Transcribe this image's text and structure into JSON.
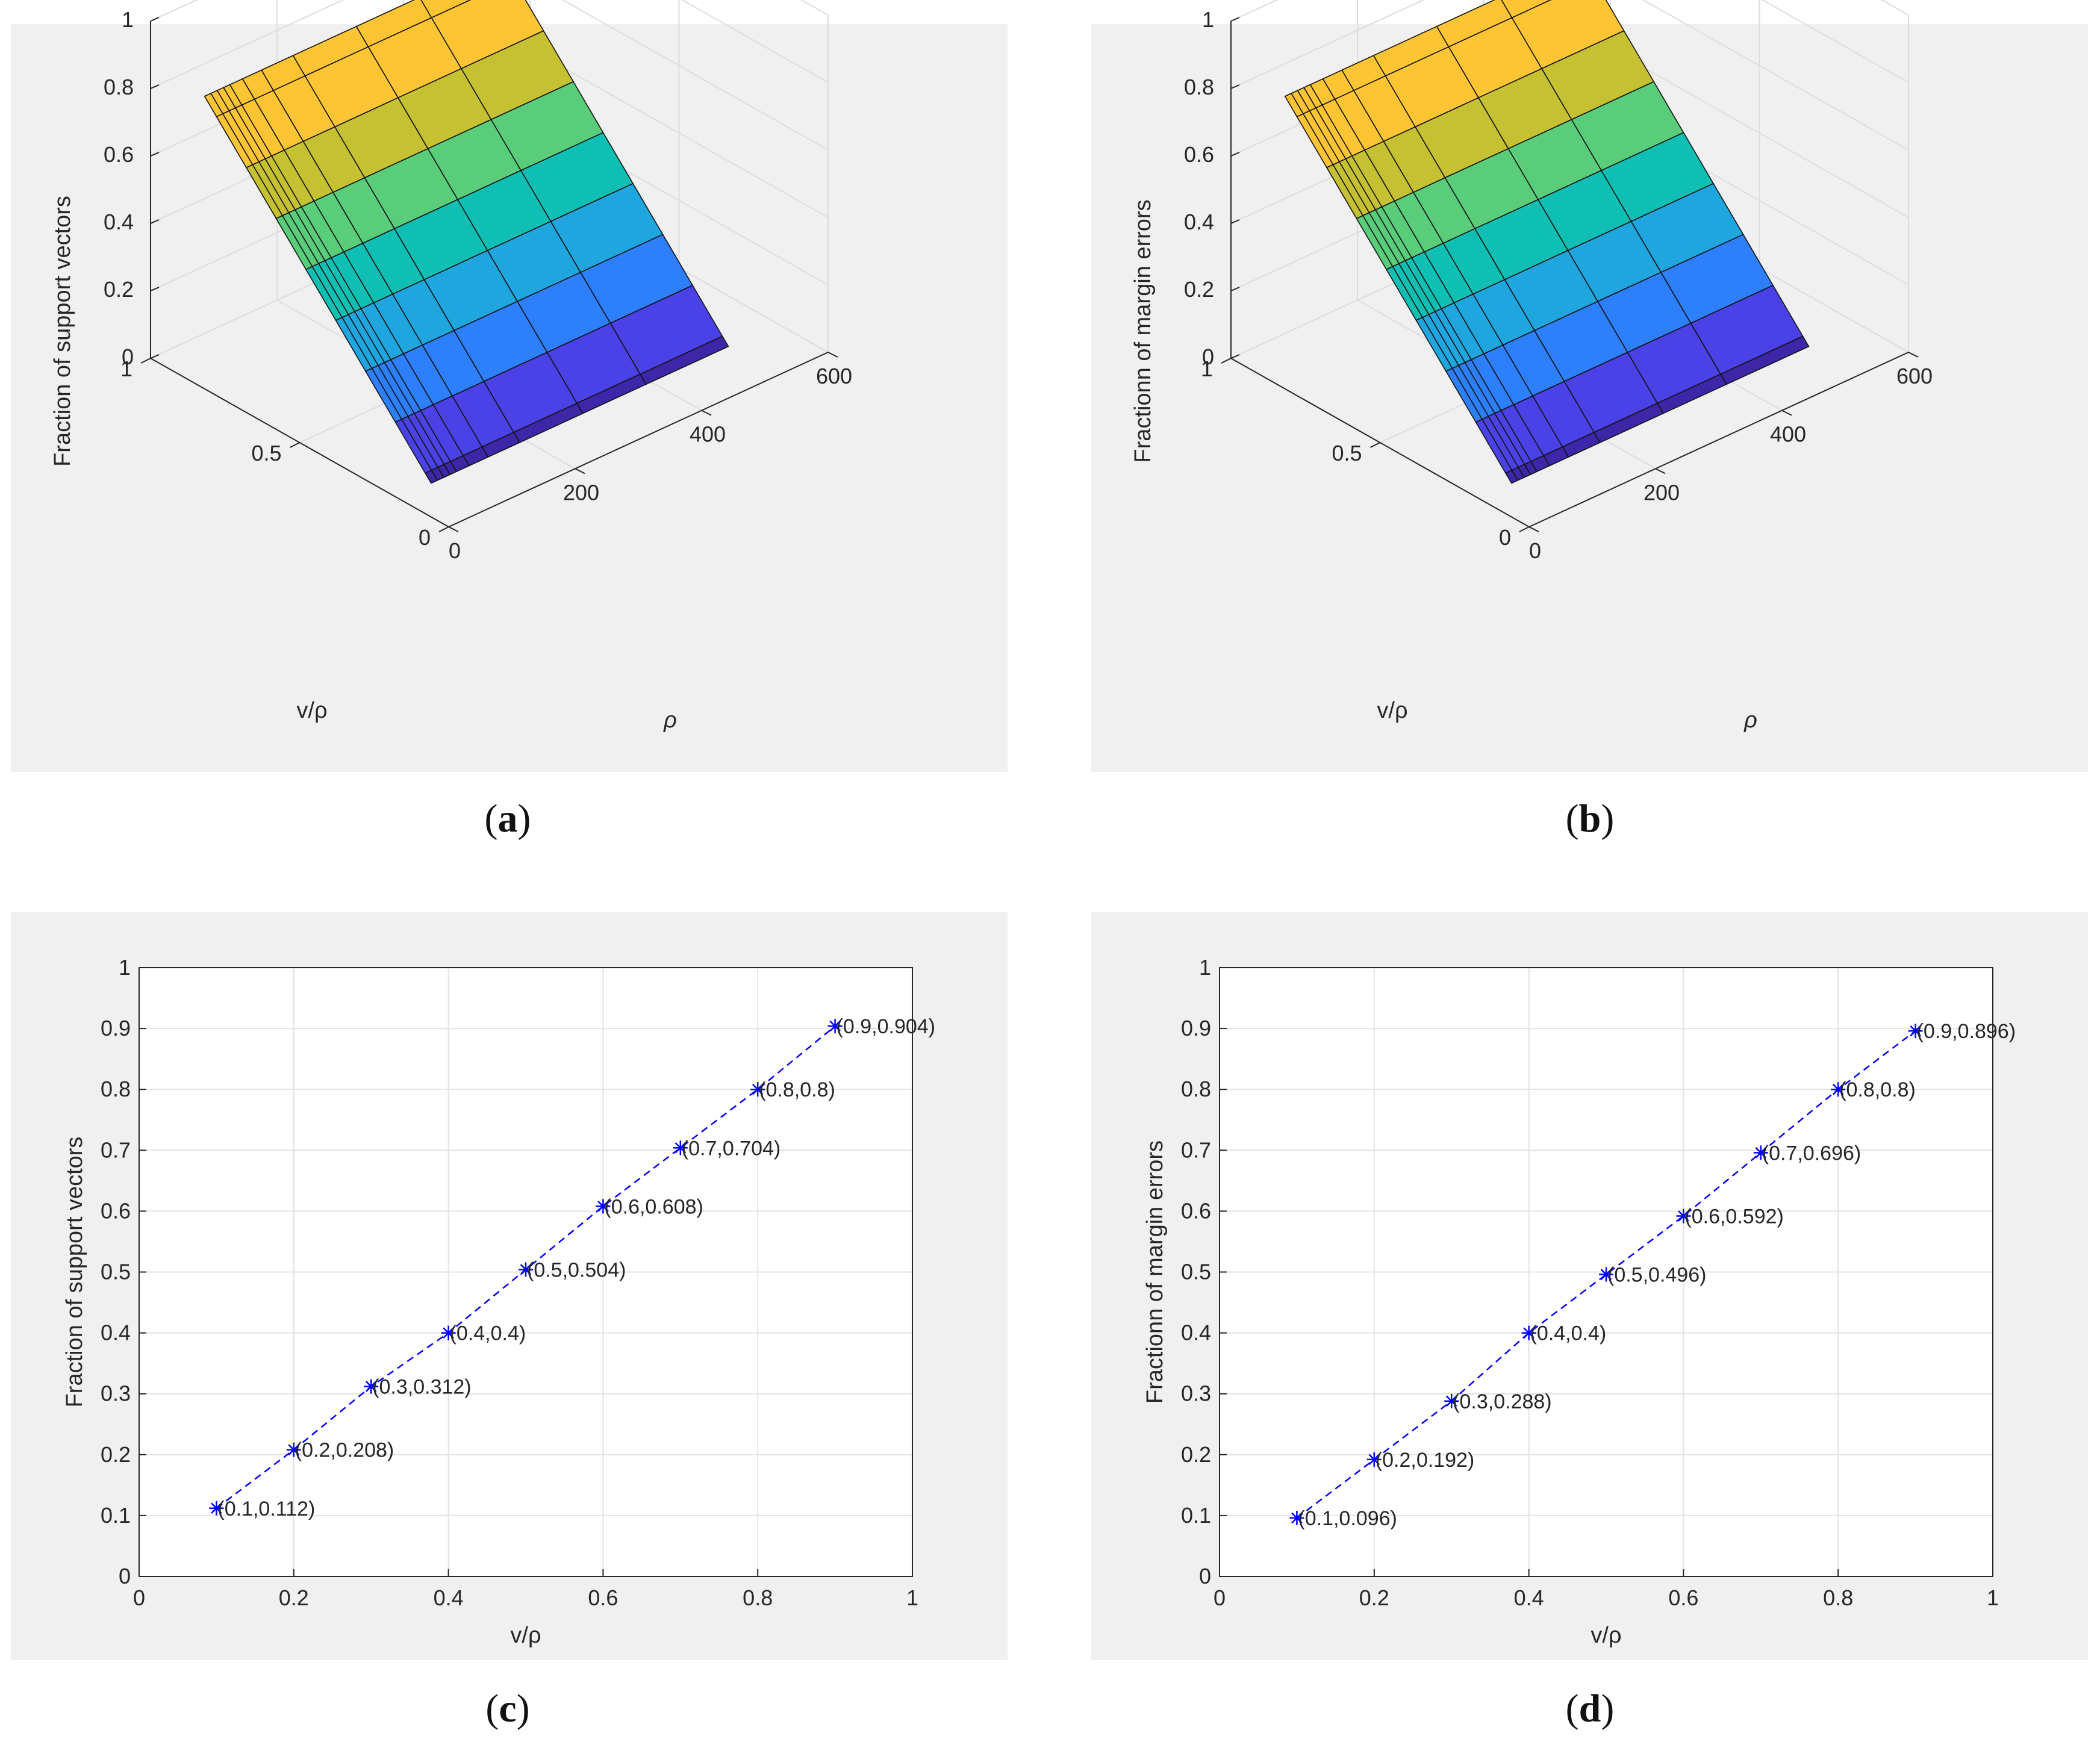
{
  "charts": [
    {
      "id": "a",
      "caption": "a",
      "type": "surface3d",
      "zlabel": "Fraction of support vectors",
      "xlabel": "v/ρ",
      "ylabel": "ρ",
      "zticks": [
        "0",
        "0.2",
        "0.4",
        "0.6",
        "0.8",
        "1"
      ],
      "xticks": [
        "0",
        "0.5",
        "1"
      ],
      "yticks": [
        "0",
        "200",
        "400",
        "600"
      ]
    },
    {
      "id": "b",
      "caption": "b",
      "type": "surface3d",
      "zlabel": "Fractionn of margin errors",
      "xlabel": "v/ρ",
      "ylabel": "ρ",
      "zticks": [
        "0",
        "0.2",
        "0.4",
        "0.6",
        "0.8",
        "1"
      ],
      "xticks": [
        "0",
        "0.5",
        "1"
      ],
      "yticks": [
        "0",
        "200",
        "400",
        "600"
      ]
    },
    {
      "id": "c",
      "caption": "c",
      "type": "line",
      "xlabel": "v/ρ",
      "ylabel": "Fraction of support vectors",
      "xlim": [
        0,
        1
      ],
      "ylim": [
        0,
        1
      ],
      "xticks": [
        "0",
        "0.2",
        "0.4",
        "0.6",
        "0.8",
        "1"
      ],
      "yticks": [
        "0",
        "0.1",
        "0.2",
        "0.3",
        "0.4",
        "0.5",
        "0.6",
        "0.7",
        "0.8",
        "0.9",
        "1"
      ],
      "grid": true,
      "series": [
        {
          "name": "Fraction of support vectors",
          "x": [
            0.1,
            0.2,
            0.3,
            0.4,
            0.5,
            0.6,
            0.7,
            0.8,
            0.9
          ],
          "y": [
            0.112,
            0.208,
            0.312,
            0.4,
            0.504,
            0.608,
            0.704,
            0.8,
            0.904
          ],
          "labels": [
            "(0.1,0.112)",
            "(0.2,0.208)",
            "(0.3,0.312)",
            "(0.4,0.4)",
            "(0.5,0.504)",
            "(0.6,0.608)",
            "(0.7,0.704)",
            "(0.8,0.8)",
            "(0.9,0.904)"
          ],
          "color": "#0000ff",
          "marker": "*",
          "linestyle": "dashed"
        }
      ]
    },
    {
      "id": "d",
      "caption": "d",
      "type": "line",
      "xlabel": "v/ρ",
      "ylabel": "Fractionn of margin errors",
      "xlim": [
        0,
        1
      ],
      "ylim": [
        0,
        1
      ],
      "xticks": [
        "0",
        "0.2",
        "0.4",
        "0.6",
        "0.8",
        "1"
      ],
      "yticks": [
        "0",
        "0.1",
        "0.2",
        "0.3",
        "0.4",
        "0.5",
        "0.6",
        "0.7",
        "0.8",
        "0.9",
        "1"
      ],
      "grid": true,
      "series": [
        {
          "name": "Fractionn of margin errors",
          "x": [
            0.1,
            0.2,
            0.3,
            0.4,
            0.5,
            0.6,
            0.7,
            0.8,
            0.9
          ],
          "y": [
            0.096,
            0.192,
            0.288,
            0.4,
            0.496,
            0.592,
            0.696,
            0.8,
            0.896
          ],
          "labels": [
            "(0.1,0.096)",
            "(0.2,0.192)",
            "(0.3,0.288)",
            "(0.4,0.4)",
            "(0.5,0.496)",
            "(0.6,0.592)",
            "(0.7,0.696)",
            "(0.8,0.8)",
            "(0.9,0.896)"
          ],
          "color": "#0000ff",
          "marker": "*",
          "linestyle": "dashed"
        }
      ]
    }
  ],
  "surface_colors": [
    "#3e26a8",
    "#4a42e6",
    "#2d7ffc",
    "#1fa6de",
    "#10bfb4",
    "#59cd7a",
    "#c6c132",
    "#fdc533"
  ]
}
